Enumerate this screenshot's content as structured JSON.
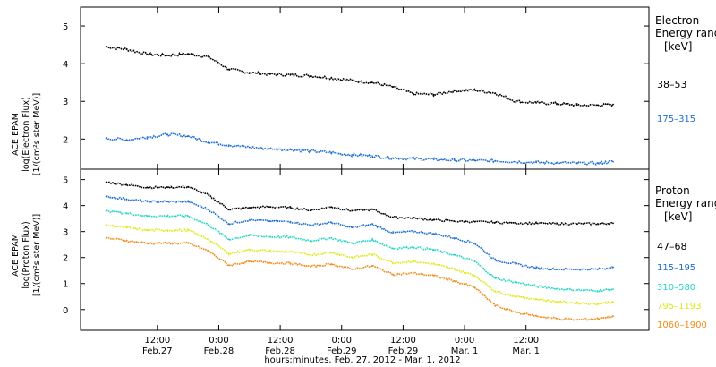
{
  "chart_data": [
    {
      "type": "line",
      "ylabel_lines": [
        "ACE EPAM",
        "log(Electron Flux)",
        "[1/(cm²s ster MeV)]"
      ],
      "ylim": [
        1.2,
        5.5
      ],
      "yticks": [
        2,
        3,
        4,
        5
      ],
      "legend_title_lines": [
        "Electron",
        "Energy ranges",
        "[keV]"
      ],
      "x_hours": [
        -10,
        -6,
        -2,
        2,
        6,
        10,
        14,
        18,
        22,
        26,
        30,
        34,
        38,
        42,
        46,
        50,
        54,
        58,
        62,
        66,
        70,
        74,
        78,
        82,
        86,
        89
      ],
      "series": [
        {
          "name": "38–53",
          "color": "#000000",
          "values": [
            4.45,
            4.38,
            4.25,
            4.22,
            4.26,
            4.18,
            3.85,
            3.76,
            3.72,
            3.7,
            3.68,
            3.62,
            3.55,
            3.5,
            3.38,
            3.2,
            3.18,
            3.28,
            3.3,
            3.22,
            3.0,
            2.96,
            2.94,
            2.9,
            2.9,
            2.92
          ]
        },
        {
          "name": "175–315",
          "color": "#1e6fd0",
          "values": [
            2.02,
            1.98,
            2.05,
            2.12,
            2.08,
            1.92,
            1.84,
            1.78,
            1.74,
            1.72,
            1.68,
            1.64,
            1.58,
            1.55,
            1.5,
            1.48,
            1.46,
            1.44,
            1.43,
            1.42,
            1.4,
            1.38,
            1.37,
            1.36,
            1.36,
            1.4
          ]
        }
      ]
    },
    {
      "type": "line",
      "ylabel_lines": [
        "ACE EPAM",
        "log(Proton Flux)",
        "[1/(cm²s ster MeV)]"
      ],
      "ylim": [
        -0.8,
        5.4
      ],
      "yticks": [
        0,
        1,
        2,
        3,
        4,
        5
      ],
      "legend_title_lines": [
        "Proton",
        "Energy ranges",
        "[keV]"
      ],
      "x_hours": [
        -10,
        -6,
        -2,
        2,
        6,
        10,
        14,
        18,
        22,
        26,
        30,
        34,
        38,
        42,
        46,
        50,
        54,
        58,
        62,
        66,
        70,
        74,
        78,
        82,
        86,
        89
      ],
      "series": [
        {
          "name": "47–68",
          "color": "#000000",
          "values": [
            4.9,
            4.8,
            4.7,
            4.7,
            4.72,
            4.4,
            3.85,
            3.92,
            3.95,
            3.92,
            3.82,
            3.95,
            3.8,
            3.85,
            3.55,
            3.52,
            3.45,
            3.4,
            3.38,
            3.35,
            3.33,
            3.32,
            3.3,
            3.3,
            3.3,
            3.32
          ]
        },
        {
          "name": "115–195",
          "color": "#1e6fd0",
          "values": [
            4.35,
            4.25,
            4.15,
            4.15,
            4.15,
            3.85,
            3.3,
            3.45,
            3.4,
            3.38,
            3.25,
            3.35,
            3.15,
            3.28,
            2.95,
            3.0,
            2.92,
            2.75,
            2.55,
            1.9,
            1.75,
            1.6,
            1.55,
            1.55,
            1.55,
            1.62
          ]
        },
        {
          "name": "310–580",
          "color": "#22d6c2",
          "values": [
            3.8,
            3.7,
            3.6,
            3.6,
            3.6,
            3.25,
            2.7,
            2.85,
            2.8,
            2.78,
            2.65,
            2.75,
            2.55,
            2.68,
            2.35,
            2.4,
            2.3,
            2.1,
            1.85,
            1.2,
            1.05,
            0.9,
            0.8,
            0.75,
            0.72,
            0.78
          ]
        },
        {
          "name": "795–1193",
          "color": "#dcea10",
          "values": [
            3.25,
            3.15,
            3.05,
            3.05,
            3.05,
            2.7,
            2.15,
            2.3,
            2.25,
            2.22,
            2.1,
            2.2,
            2.0,
            2.12,
            1.8,
            1.85,
            1.75,
            1.55,
            1.3,
            0.7,
            0.5,
            0.4,
            0.3,
            0.25,
            0.22,
            0.3
          ]
        },
        {
          "name": "1060–1900",
          "color": "#f08a18",
          "values": [
            2.75,
            2.65,
            2.55,
            2.55,
            2.55,
            2.25,
            1.7,
            1.85,
            1.8,
            1.78,
            1.65,
            1.75,
            1.55,
            1.68,
            1.35,
            1.4,
            1.3,
            1.1,
            0.85,
            0.15,
            -0.1,
            -0.25,
            -0.35,
            -0.4,
            -0.35,
            -0.25
          ]
        }
      ]
    }
  ],
  "x_axis": {
    "xlim_hours": [
      -15,
      96
    ],
    "ticks": [
      {
        "hours": 0,
        "line1": "12:00",
        "line2": "Feb.27"
      },
      {
        "hours": 12,
        "line1": "0:00",
        "line2": "Feb.28"
      },
      {
        "hours": 24,
        "line1": "12:00",
        "line2": "Feb.28"
      },
      {
        "hours": 36,
        "line1": "0:00",
        "line2": "Feb.29"
      },
      {
        "hours": 48,
        "line1": "12:00",
        "line2": "Feb.29"
      },
      {
        "hours": 60,
        "line1": "0:00",
        "line2": "Mar. 1"
      },
      {
        "hours": 72,
        "line1": "12:00",
        "line2": "Mar. 1"
      }
    ],
    "label": "hours:minutes, Feb. 27, 2012 - Mar. 1, 2012"
  }
}
